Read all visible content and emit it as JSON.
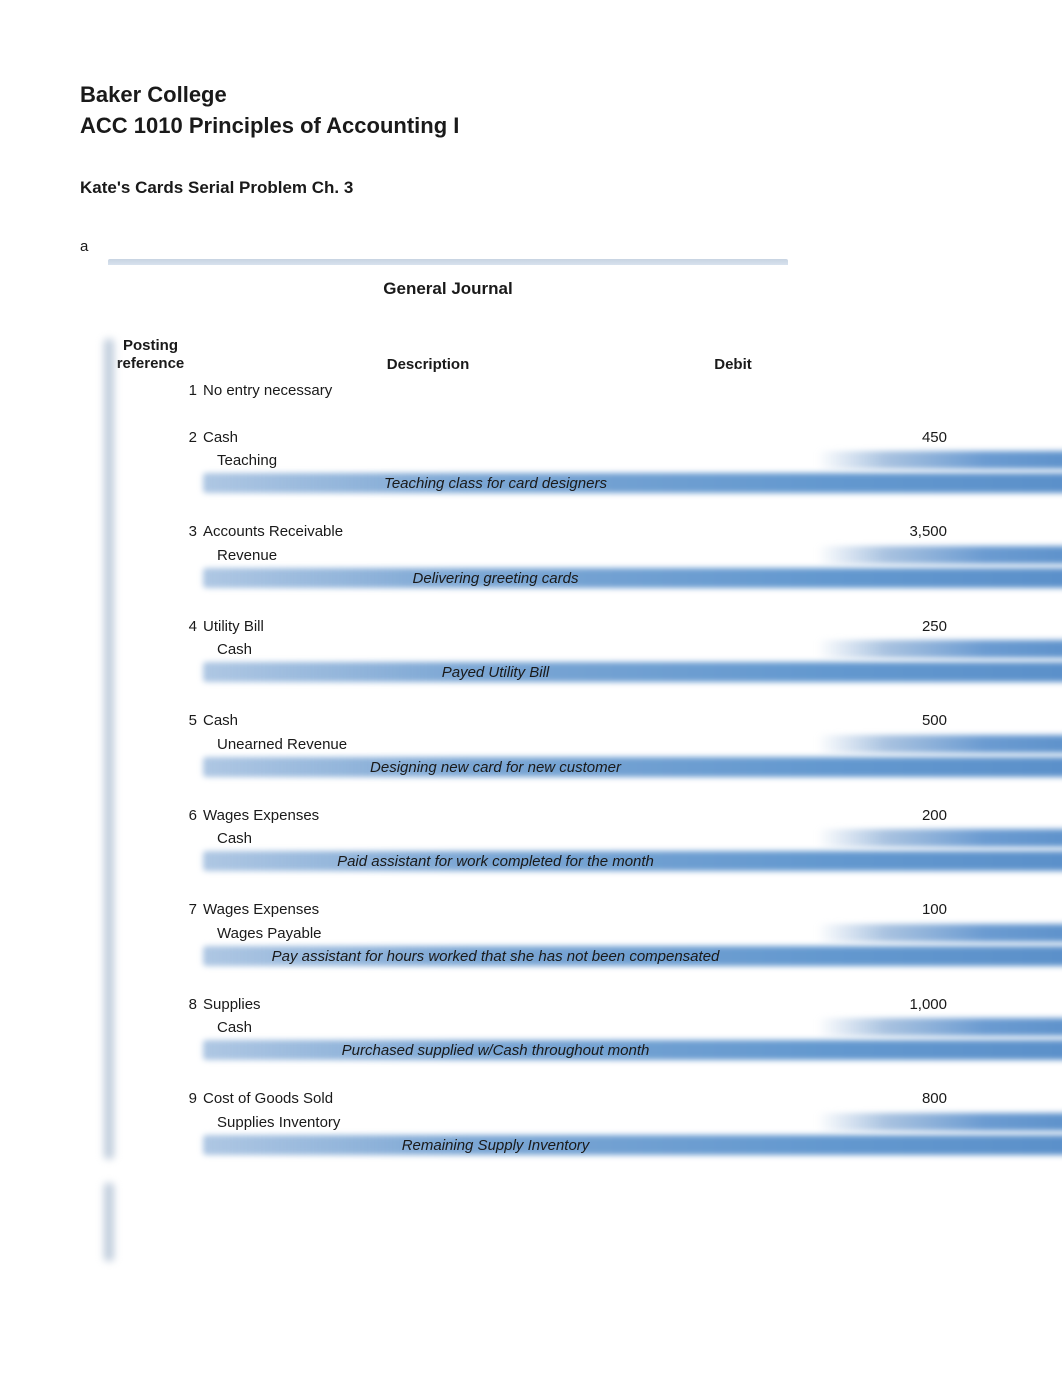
{
  "header": {
    "institution": "Baker College",
    "course": "ACC 1010 Principles of Accounting I",
    "subtitle": "Kate's Cards Serial Problem Ch. 3",
    "section_label": "a"
  },
  "journal": {
    "title": "General Journal",
    "columns": {
      "posting_ref_line1": "Posting",
      "posting_ref_line2": "reference",
      "description": "Description",
      "debit": "Debit"
    },
    "entries": [
      {
        "ref": "1",
        "debit_account": "No entry necessary",
        "credit_account": "",
        "debit_amount": "",
        "explanation": ""
      },
      {
        "ref": "2",
        "debit_account": "Cash",
        "credit_account": "Teaching",
        "debit_amount": "450",
        "explanation": "Teaching class for card designers"
      },
      {
        "ref": "3",
        "debit_account": "Accounts Receivable",
        "credit_account": "Revenue",
        "debit_amount": "3,500",
        "explanation": "Delivering greeting cards"
      },
      {
        "ref": "4",
        "debit_account": "Utility Bill",
        "credit_account": "Cash",
        "debit_amount": "250",
        "explanation": "Payed Utility Bill"
      },
      {
        "ref": "5",
        "debit_account": "Cash",
        "credit_account": "Unearned Revenue",
        "debit_amount": "500",
        "explanation": "Designing new card for new customer"
      },
      {
        "ref": "6",
        "debit_account": "Wages Expenses",
        "credit_account": "Cash",
        "debit_amount": "200",
        "explanation": "Paid assistant for work completed for the month"
      },
      {
        "ref": "7",
        "debit_account": "Wages Expenses",
        "credit_account": "Wages Payable",
        "debit_amount": "100",
        "explanation": "Pay assistant for hours worked that she has not been compensated"
      },
      {
        "ref": "8",
        "debit_account": "Supplies",
        "credit_account": "Cash",
        "debit_amount": "1,000",
        "explanation": "Purchased supplied w/Cash throughout month"
      },
      {
        "ref": "9",
        "debit_account": "Cost of Goods Sold",
        "credit_account": "Supplies Inventory",
        "debit_amount": "800",
        "explanation": "Remaining Supply Inventory"
      }
    ]
  },
  "styles": {
    "text_color": "#1a1a1a",
    "background_color": "#ffffff",
    "blur_color_light": "#a8c2e0",
    "blur_color_dark": "#5a8fc9",
    "top_border_color": "#c8d4e2",
    "left_bar_color": "#c0cddc",
    "title_fontsize": 22,
    "subtitle_fontsize": 17,
    "body_fontsize": 15
  }
}
